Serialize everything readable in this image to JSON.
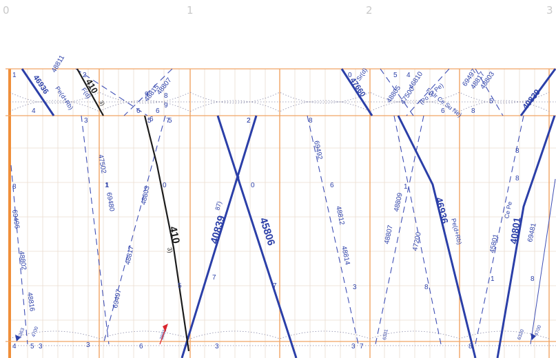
{
  "hours": [
    "0",
    "1",
    "2",
    "3"
  ],
  "colors": {
    "grid_major": "#f1a463",
    "grid_minor": "#eadccf",
    "train_bold": "#2b3fa8",
    "train_black": "#1c1c1c",
    "hour_label": "#c8c8c8",
    "marker_red": "#d9262e"
  },
  "trains_bold": [
    "40839",
    "45806",
    "40839",
    "40801",
    "46936",
    "47660",
    "46936",
    "40839"
  ],
  "trains_black": [
    "410",
    "410"
  ],
  "train_black_sup": [
    "3)",
    "3)"
  ],
  "trains_bold_sup": [
    "87)"
  ],
  "trains_dashed": [
    "47502",
    "69480",
    "48803",
    "48817",
    "69497",
    "69496",
    "48802",
    "48816",
    "69492",
    "48812",
    "48814",
    "48807",
    "48809",
    "47200",
    "45801",
    "69481"
  ],
  "trains_top": [
    "48815",
    "48807",
    "48811",
    "48805",
    "47500",
    "46810",
    "69497",
    "48817",
    "48803"
  ],
  "notes": [
    "Pe(d+Rb)",
    "F(d)",
    "Pe(d+Rb)",
    "F(Ur Ce Su Ne)",
    "(Po Sr Pe)",
    "Sr(d)",
    "Ce Pe"
  ],
  "minutes": [
    "2",
    "3",
    "4",
    "5",
    "6",
    "7",
    "8",
    "9",
    "0",
    "1",
    "2",
    "4",
    "5",
    "6",
    "8",
    "5",
    "0",
    "2",
    "4",
    "7",
    "8",
    "1",
    "3",
    "5",
    "6",
    "7",
    "8",
    "9",
    "0",
    "5",
    "8",
    "3",
    "4",
    "1",
    "8",
    "6",
    "6",
    "1",
    "8",
    "1",
    "8",
    "3",
    "5",
    "7",
    "3",
    "8",
    "6",
    "3"
  ],
  "small_labels": [
    "6363",
    "4700",
    "3891",
    "6331",
    "4700",
    "6320"
  ]
}
